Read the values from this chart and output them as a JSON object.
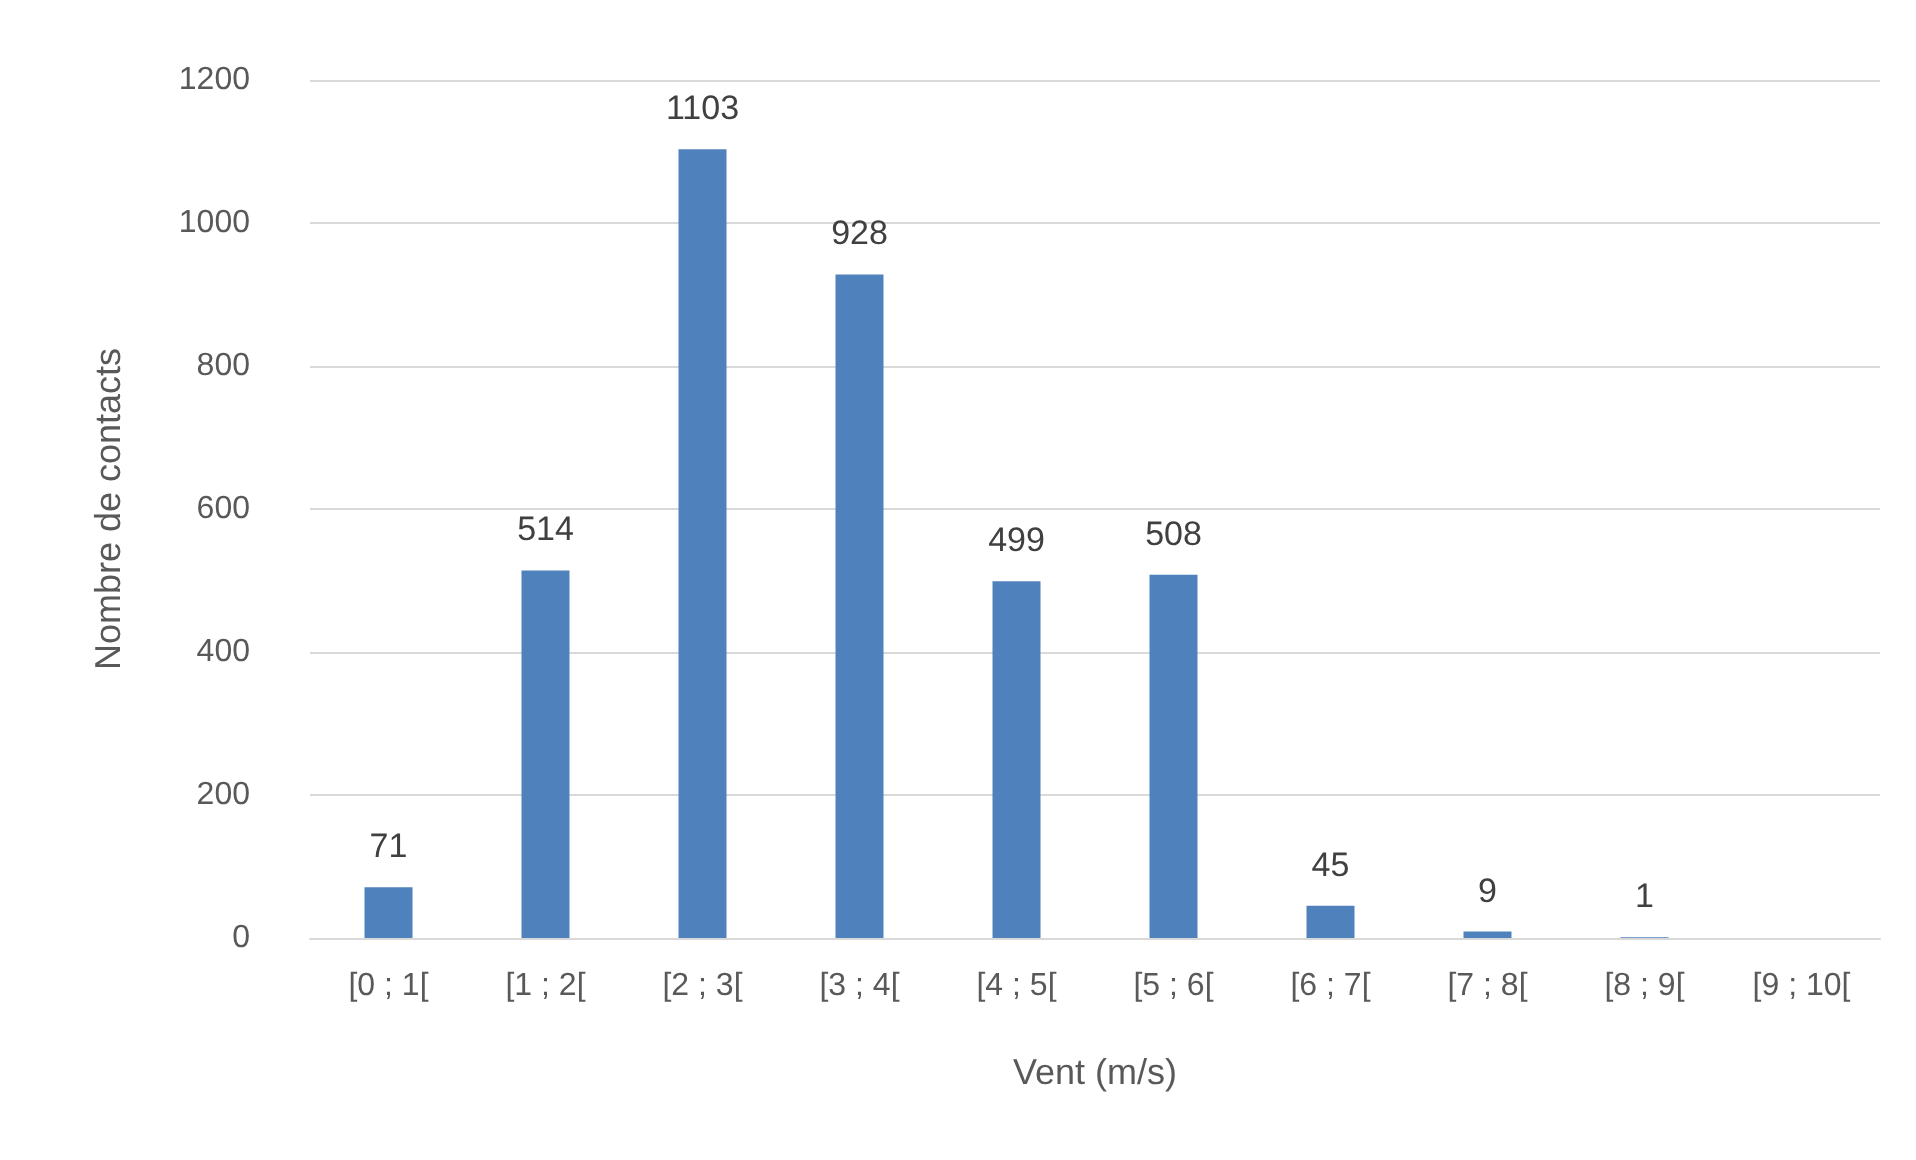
{
  "chart_data": {
    "type": "bar",
    "xlabel": "Vent (m/s)",
    "ylabel": "Nombre de contacts",
    "categories": [
      "[0 ; 1[",
      "[1 ; 2[",
      "[2 ; 3[",
      "[3 ; 4[",
      "[4 ; 5[",
      "[5 ; 6[",
      "[6 ; 7[",
      "[7 ; 8[",
      "[8 ; 9[",
      "[9 ; 10["
    ],
    "values": [
      71,
      514,
      1103,
      928,
      499,
      508,
      45,
      9,
      1,
      0
    ],
    "value_labels": [
      "71",
      "514",
      "1103",
      "928",
      "499",
      "508",
      "45",
      "9",
      "1",
      null
    ],
    "color": "#4f81bd",
    "ylim": [
      0,
      1200
    ],
    "yticks": [
      0,
      200,
      400,
      600,
      800,
      1000,
      1200
    ],
    "grid": "y"
  }
}
